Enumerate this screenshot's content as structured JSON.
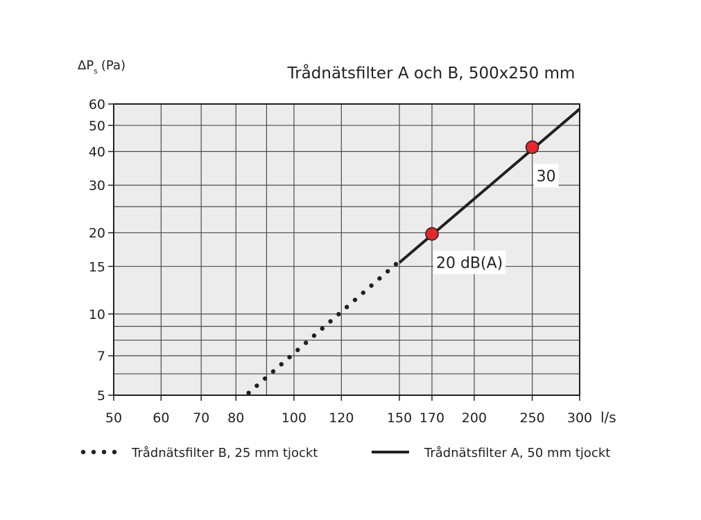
{
  "chart_data": {
    "type": "line",
    "title": "Trådnätsfilter A och B, 500x250 mm",
    "ylabel": {
      "main": "ΔP",
      "sub": "s",
      "unit": "(Pa)"
    },
    "xlabel": "l/s",
    "x_scale": "log",
    "y_scale": "log",
    "xlim": [
      50,
      300
    ],
    "ylim": [
      5,
      60
    ],
    "grid": true,
    "x_ticks": [
      50,
      60,
      70,
      80,
      100,
      120,
      150,
      170,
      200,
      250,
      300
    ],
    "x_gridlines": [
      50,
      60,
      70,
      80,
      90,
      100,
      120,
      150,
      170,
      200,
      250,
      300
    ],
    "y_ticks": [
      5,
      7,
      10,
      15,
      20,
      30,
      40,
      50,
      60
    ],
    "y_gridlines": [
      5,
      6,
      7,
      8,
      9,
      10,
      15,
      20,
      25,
      30,
      40,
      50,
      60
    ],
    "series": [
      {
        "name": "Trådnätsfilter B, 25 mm tjockt",
        "style": "dotted",
        "color": "#231f20",
        "points": [
          [
            84,
            5.1
          ],
          [
            148,
            15.3
          ]
        ]
      },
      {
        "name": "Trådnätsfilter A, 50 mm tjockt",
        "style": "solid",
        "color": "#231f20",
        "points": [
          [
            150,
            15.5
          ],
          [
            300,
            57.5
          ]
        ]
      }
    ],
    "markers": [
      {
        "x": 170,
        "y": 19.8,
        "label": "20 dB(A)",
        "color": "#e8252b"
      },
      {
        "x": 250,
        "y": 41.5,
        "label": "30",
        "color": "#e8252b"
      }
    ],
    "legend_placement": "bottom"
  }
}
